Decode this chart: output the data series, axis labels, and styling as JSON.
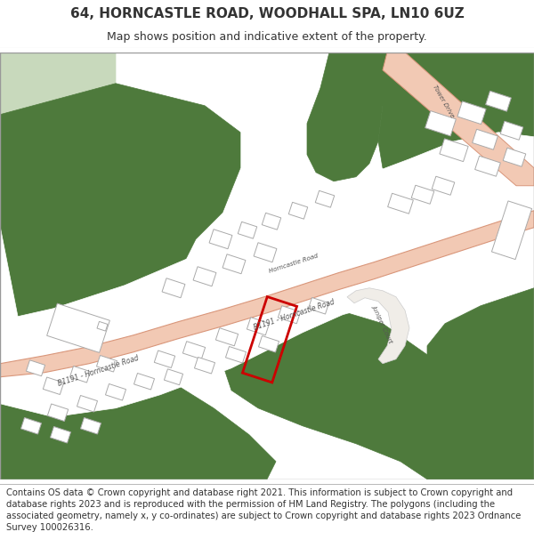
{
  "title": "64, HORNCASTLE ROAD, WOODHALL SPA, LN10 6UZ",
  "subtitle": "Map shows position and indicative extent of the property.",
  "footer": "Contains OS data © Crown copyright and database right 2021. This information is subject to Crown copyright and database rights 2023 and is reproduced with the permission of HM Land Registry. The polygons (including the associated geometry, namely x, y co-ordinates) are subject to Crown copyright and database rights 2023 Ordnance Survey 100026316.",
  "map_bg": "#ffffff",
  "green_color": "#4e7a3c",
  "light_green_color": "#c8d9bc",
  "road_fill": "#f2c9b4",
  "road_edge": "#d9967a",
  "bld_edge": "#aaaaaa",
  "plot_color": "#cc0000",
  "text_color": "#333333",
  "label_color": "#555555",
  "title_fontsize": 11,
  "subtitle_fontsize": 9,
  "footer_fontsize": 7.2
}
